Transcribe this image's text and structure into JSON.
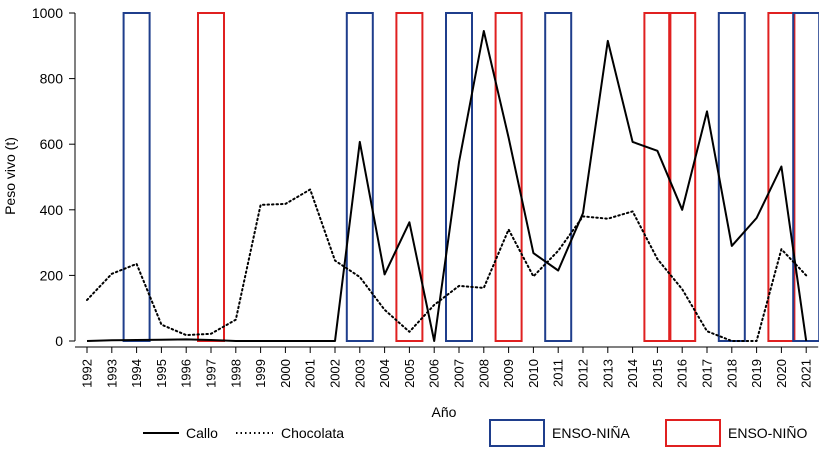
{
  "chart_data": {
    "type": "line",
    "title": "",
    "xlabel": "Año",
    "ylabel": "Peso vivo (t)",
    "ylim": [
      0,
      1000
    ],
    "yticks": [
      0,
      200,
      400,
      600,
      800,
      1000
    ],
    "categories": [
      "1992",
      "1993",
      "1994",
      "1995",
      "1996",
      "1997",
      "1998",
      "1999",
      "2000",
      "2001",
      "2002",
      "2003",
      "2004",
      "2005",
      "2006",
      "2007",
      "2008",
      "2009",
      "2010",
      "2011",
      "2012",
      "2013",
      "2014",
      "2015",
      "2016",
      "2017",
      "2018",
      "2019",
      "2020",
      "2021"
    ],
    "series": [
      {
        "name": "Callo",
        "style": "solid",
        "color": "#000000",
        "values": [
          0,
          2,
          3,
          4,
          5,
          3,
          0,
          0,
          0,
          0,
          0,
          607,
          203,
          362,
          0,
          545,
          945,
          620,
          268,
          215,
          390,
          915,
          607,
          580,
          400,
          700,
          290,
          375,
          532,
          0
        ]
      },
      {
        "name": "Chocolata",
        "style": "dotted",
        "color": "#000000",
        "values": [
          125,
          205,
          235,
          50,
          18,
          22,
          65,
          415,
          418,
          462,
          245,
          195,
          95,
          28,
          110,
          168,
          162,
          340,
          197,
          275,
          380,
          373,
          395,
          250,
          158,
          30,
          0,
          0,
          280,
          200
        ]
      }
    ],
    "enso_periods": [
      {
        "type": "nina",
        "year": "1994"
      },
      {
        "type": "nino",
        "year": "1997"
      },
      {
        "type": "nina",
        "year": "2003"
      },
      {
        "type": "nino",
        "year": "2005"
      },
      {
        "type": "nina",
        "year": "2007"
      },
      {
        "type": "nino",
        "year": "2009"
      },
      {
        "type": "nina",
        "year": "2011"
      },
      {
        "type": "nino",
        "year": "2015"
      },
      {
        "type": "nino",
        "year": "2016"
      },
      {
        "type": "nina",
        "year": "2018"
      },
      {
        "type": "nino",
        "year": "2020"
      },
      {
        "type": "nina",
        "year": "2021"
      }
    ],
    "legend": {
      "callo": "Callo",
      "chocolata": "Chocolata",
      "nina": "ENSO-NIÑA",
      "nino": "ENSO-NIÑO"
    },
    "colors": {
      "nina": "#1f3e8c",
      "nino": "#e02020",
      "line": "#000000"
    }
  }
}
